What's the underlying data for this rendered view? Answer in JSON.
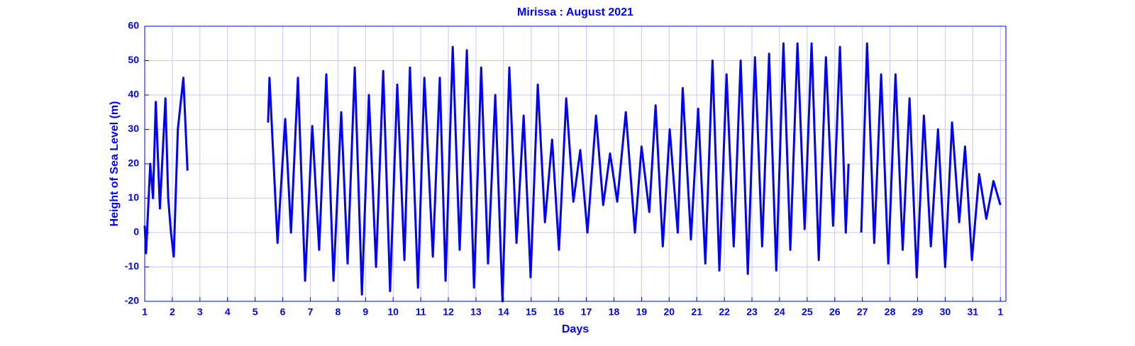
{
  "chart_data": {
    "type": "line",
    "title": "Mirissa  : August 2021",
    "x_label": "Days",
    "y_label": "Height of Sea Level (m)",
    "grid": true,
    "color": "#0000ff",
    "xlim": [
      1,
      32.2
    ],
    "ylim": [
      -20,
      60
    ],
    "xticks": [
      1,
      2,
      3,
      4,
      5,
      6,
      7,
      8,
      9,
      10,
      11,
      12,
      13,
      14,
      15,
      16,
      17,
      18,
      19,
      20,
      21,
      22,
      23,
      24,
      25,
      26,
      27,
      28,
      29,
      30,
      31,
      {
        "value": 32,
        "label": "1"
      }
    ],
    "yticks": [
      -20,
      -10,
      0,
      10,
      20,
      30,
      40,
      50,
      60
    ],
    "x": [
      1.0,
      1.05,
      1.2,
      1.3,
      1.4,
      1.55,
      1.75,
      1.85,
      1.95,
      2.05,
      2.2,
      2.4,
      2.55,
      null,
      5.47,
      5.52,
      5.81,
      6.09,
      6.3,
      6.55,
      6.81,
      7.07,
      7.32,
      7.58,
      7.84,
      8.12,
      8.35,
      8.61,
      8.87,
      9.12,
      9.38,
      9.64,
      9.89,
      10.15,
      10.41,
      10.61,
      10.9,
      11.13,
      11.44,
      11.69,
      11.9,
      12.16,
      12.41,
      12.67,
      12.93,
      13.19,
      13.44,
      13.7,
      13.96,
      14.21,
      14.47,
      14.73,
      14.98,
      15.24,
      15.5,
      15.76,
      16.01,
      16.27,
      16.53,
      16.78,
      17.04,
      17.35,
      17.61,
      17.86,
      18.12,
      18.43,
      18.76,
      19.0,
      19.28,
      19.51,
      19.77,
      20.02,
      20.31,
      20.49,
      20.79,
      21.05,
      21.31,
      21.57,
      21.82,
      22.08,
      22.34,
      22.59,
      22.85,
      23.11,
      23.37,
      23.62,
      23.88,
      24.14,
      24.39,
      24.65,
      24.91,
      25.16,
      25.42,
      25.68,
      25.94,
      26.19,
      26.4,
      26.5,
      null,
      26.96,
      27.17,
      27.43,
      27.68,
      27.94,
      28.2,
      28.46,
      28.71,
      28.97,
      29.23,
      29.48,
      29.74,
      30.0,
      30.25,
      30.51,
      30.72,
      30.97,
      31.23,
      31.49,
      31.75,
      32.0
    ],
    "values": [
      2,
      -6,
      20,
      10,
      38,
      7,
      39,
      10,
      0,
      -7,
      30,
      45,
      18,
      null,
      32,
      45,
      -3,
      33,
      0,
      45,
      -14,
      31,
      -5,
      46,
      -14,
      35,
      -9,
      48,
      -18,
      40,
      -10,
      47,
      -17,
      43,
      -8,
      48,
      -16,
      45,
      -7,
      45,
      -14,
      54,
      -5,
      53,
      -16,
      48,
      -9,
      40,
      -20,
      48,
      -3,
      34,
      -13,
      43,
      3,
      27,
      -5,
      39,
      9,
      24,
      0,
      34,
      8,
      23,
      9,
      35,
      0,
      25,
      6,
      37,
      -4,
      30,
      0,
      42,
      -2,
      36,
      -9,
      50,
      -11,
      46,
      -4,
      50,
      -12,
      51,
      -4,
      52,
      -11,
      55,
      -5,
      55,
      1,
      55,
      -8,
      51,
      2,
      54,
      0,
      20,
      null,
      0,
      55,
      -3,
      46,
      -9,
      46,
      -5,
      39,
      -13,
      34,
      -4,
      30,
      -10,
      32,
      3,
      25,
      -8,
      17,
      4,
      15,
      8
    ]
  }
}
